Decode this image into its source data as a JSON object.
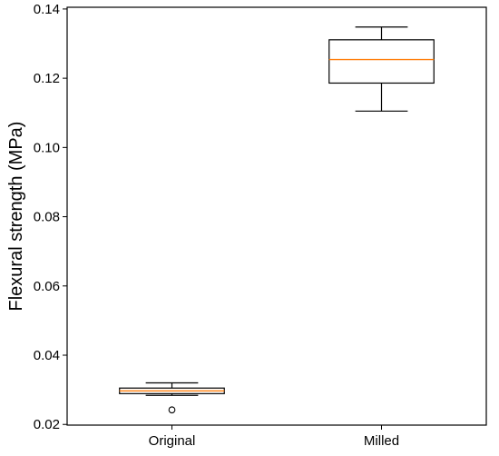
{
  "chart_data": {
    "type": "box",
    "title": "",
    "xlabel": "",
    "ylabel": "Flexural strength (MPa)",
    "ylim": [
      0.0198,
      0.1405
    ],
    "yticks": [
      0.02,
      0.04,
      0.06,
      0.08,
      0.1,
      0.12,
      0.14
    ],
    "ytick_labels": [
      "0.02",
      "0.04",
      "0.06",
      "0.08",
      "0.10",
      "0.12",
      "0.14"
    ],
    "categories": [
      "Original",
      "Milled"
    ],
    "boxes": [
      {
        "category": "Original",
        "whisker_low": 0.0284,
        "q1": 0.0289,
        "median": 0.0297,
        "q3": 0.0305,
        "whisker_high": 0.032,
        "outliers": [
          0.0242
        ]
      },
      {
        "category": "Milled",
        "whisker_low": 0.1105,
        "q1": 0.1186,
        "median": 0.1254,
        "q3": 0.1311,
        "whisker_high": 0.1348,
        "outliers": []
      }
    ],
    "grid": false,
    "colors": {
      "box": "#000000",
      "median": "#ff7f0e",
      "frame": "#000000"
    }
  }
}
